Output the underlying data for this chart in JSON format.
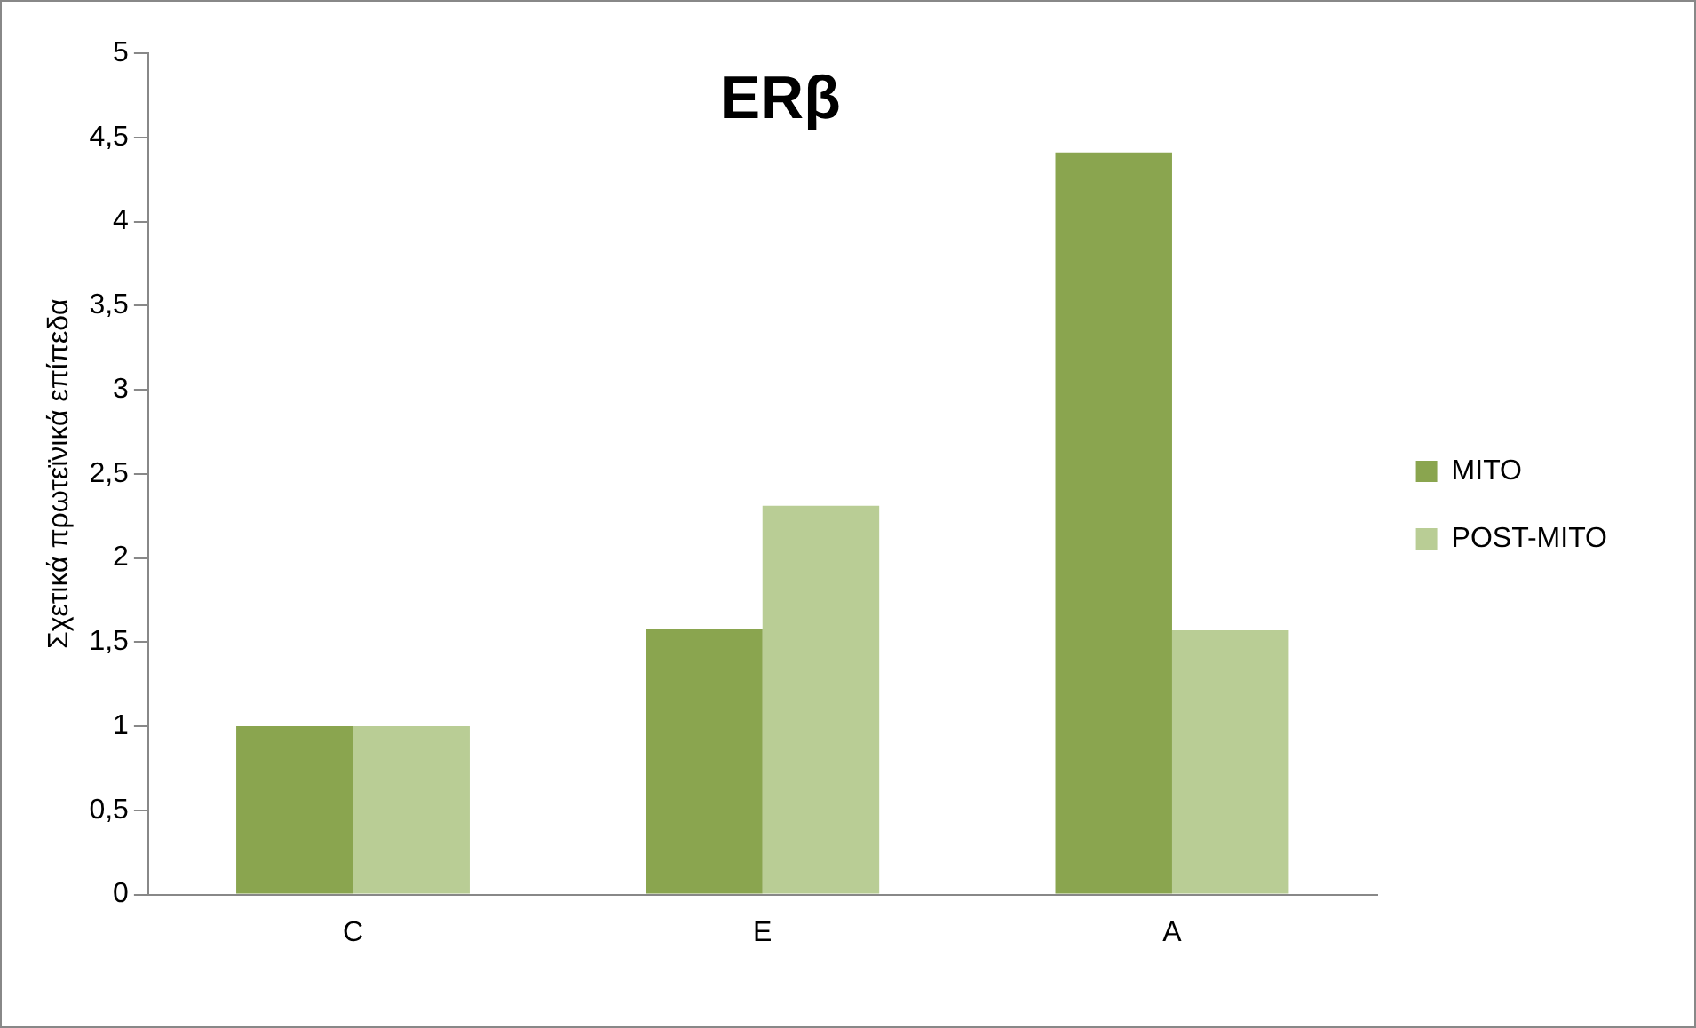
{
  "chart_data": {
    "type": "bar",
    "title": "ERβ",
    "ylabel": "Σχετικά πρωτεϊνικά επίπεδα",
    "categories": [
      "C",
      "E",
      "A"
    ],
    "series": [
      {
        "name": "MITO",
        "color": "#8aa54f",
        "values": [
          1,
          1.58,
          4.41
        ]
      },
      {
        "name": "POST-MITO",
        "color": "#b9cd95",
        "values": [
          1,
          2.31,
          1.57
        ]
      }
    ],
    "ylim": [
      0,
      5
    ],
    "yticks": [
      0,
      {
        "value": 0.5,
        "label": "0,5"
      },
      1,
      {
        "value": 1.5,
        "label": "1,5"
      },
      2,
      {
        "value": 2.5,
        "label": "2,5"
      },
      3,
      {
        "value": 3.5,
        "label": "3,5"
      },
      4,
      {
        "value": 4.5,
        "label": "4,5"
      },
      5
    ],
    "grid": false,
    "legend": "right"
  }
}
